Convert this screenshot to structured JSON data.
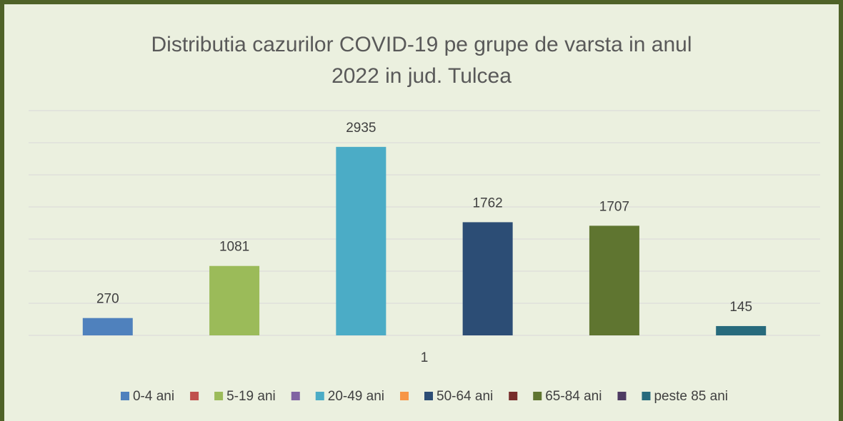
{
  "chart_data": {
    "type": "bar",
    "title": "Distributia cazurilor COVID-19 pe grupe de varsta in anul",
    "subtitle": "2022 in jud. Tulcea",
    "categories": [
      "1"
    ],
    "series": [
      {
        "name": "0-4 ani",
        "color": "#4f81bd",
        "values": [
          270
        ]
      },
      {
        "name": null,
        "color": "#c0504d",
        "values": [
          null
        ]
      },
      {
        "name": "5-19 ani",
        "color": "#9bbb59",
        "values": [
          1081
        ]
      },
      {
        "name": null,
        "color": "#8064a2",
        "values": [
          null
        ]
      },
      {
        "name": "20-49 ani",
        "color": "#4bacc6",
        "values": [
          2935
        ]
      },
      {
        "name": null,
        "color": "#f79646",
        "values": [
          null
        ]
      },
      {
        "name": "50-64 ani",
        "color": "#2c4d75",
        "values": [
          1762
        ]
      },
      {
        "name": null,
        "color": "#772c2a",
        "values": [
          null
        ]
      },
      {
        "name": "65-84 ani",
        "color": "#5f7530",
        "values": [
          1707
        ]
      },
      {
        "name": null,
        "color": "#4d3b62",
        "values": [
          null
        ]
      },
      {
        "name": "peste 85 ani",
        "color": "#276a7c",
        "values": [
          145
        ]
      }
    ],
    "ylim": [
      0,
      3500
    ],
    "yticks": [
      0,
      500,
      1000,
      1500,
      2000,
      2500,
      3000,
      3500
    ],
    "grid": true,
    "legend": "bottom"
  }
}
